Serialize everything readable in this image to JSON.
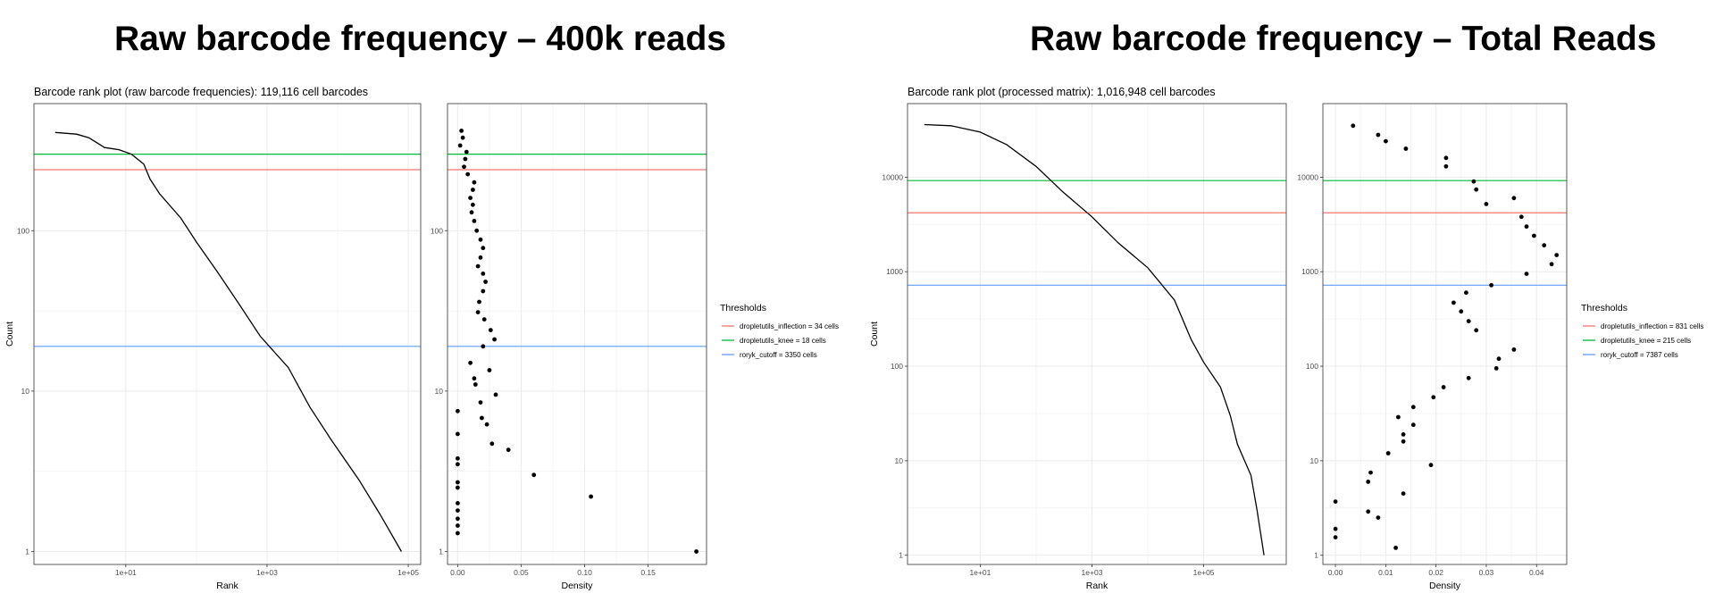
{
  "titles": {
    "left": "Raw barcode frequency – 400k reads",
    "right": "Raw barcode frequency – Total Reads"
  },
  "chart_data": [
    {
      "type": "line",
      "title": "Barcode rank plot (raw barcode frequencies): 119,116 cell barcodes",
      "xlabel": "Rank",
      "ylabel": "Count",
      "x_scale": "log10",
      "y_scale": "log10",
      "xlim": [
        0.5,
        150000
      ],
      "ylim": [
        0.83,
        620
      ],
      "x_ticks": [
        {
          "v": 10,
          "label": "1e+01"
        },
        {
          "v": 1000,
          "label": "1e+03"
        },
        {
          "v": 100000,
          "label": "1e+05"
        }
      ],
      "y_ticks": [
        {
          "v": 1,
          "label": "1"
        },
        {
          "v": 10,
          "label": "10"
        },
        {
          "v": 100,
          "label": "100"
        }
      ],
      "curve": [
        [
          1,
          410
        ],
        [
          2,
          400
        ],
        [
          3,
          380
        ],
        [
          5,
          330
        ],
        [
          8,
          320
        ],
        [
          12,
          300
        ],
        [
          18,
          260
        ],
        [
          22,
          210
        ],
        [
          30,
          170
        ],
        [
          60,
          120
        ],
        [
          100,
          85
        ],
        [
          200,
          55
        ],
        [
          400,
          35
        ],
        [
          800,
          22
        ],
        [
          2000,
          14
        ],
        [
          4000,
          8
        ],
        [
          8000,
          5
        ],
        [
          20000,
          2.8
        ],
        [
          40000,
          1.7
        ],
        [
          80000,
          1.0
        ]
      ],
      "thresholds": [
        {
          "name": "dropletutils_inflection = 34 cells",
          "value": 240,
          "color": "#F8766D"
        },
        {
          "name": "dropletutils_knee = 18 cells",
          "value": 300,
          "color": "#00BA38"
        },
        {
          "name": "roryk_cutoff = 3350 cells",
          "value": 19,
          "color": "#619CFF"
        }
      ]
    },
    {
      "type": "scatter",
      "xlabel": "Density",
      "ylabel": "",
      "x_scale": "linear",
      "y_scale": "log10",
      "xlim": [
        -0.008,
        0.196
      ],
      "ylim": [
        0.83,
        620
      ],
      "x_ticks": [
        {
          "v": 0,
          "label": "0.00"
        },
        {
          "v": 0.05,
          "label": "0.05"
        },
        {
          "v": 0.1,
          "label": "0.10"
        },
        {
          "v": 0.15,
          "label": "0.15"
        }
      ],
      "y_ticks": [
        {
          "v": 1,
          "label": "1"
        },
        {
          "v": 10,
          "label": "10"
        },
        {
          "v": 100,
          "label": "100"
        }
      ],
      "points": [
        [
          0.003,
          420
        ],
        [
          0.004,
          380
        ],
        [
          0.002,
          340
        ],
        [
          0.007,
          310
        ],
        [
          0.006,
          280
        ],
        [
          0.005,
          250
        ],
        [
          0.008,
          225
        ],
        [
          0.013,
          200
        ],
        [
          0.012,
          180
        ],
        [
          0.01,
          160
        ],
        [
          0.012,
          145
        ],
        [
          0.011,
          130
        ],
        [
          0.013,
          115
        ],
        [
          0.015,
          100
        ],
        [
          0.018,
          88
        ],
        [
          0.02,
          78
        ],
        [
          0.018,
          68
        ],
        [
          0.016,
          60
        ],
        [
          0.02,
          54
        ],
        [
          0.022,
          48
        ],
        [
          0.02,
          42
        ],
        [
          0.017,
          36
        ],
        [
          0.016,
          31
        ],
        [
          0.021,
          28
        ],
        [
          0.026,
          24
        ],
        [
          0.029,
          21
        ],
        [
          0.02,
          19
        ],
        [
          0.01,
          15
        ],
        [
          0.025,
          13.5
        ],
        [
          0.013,
          12
        ],
        [
          0.014,
          11
        ],
        [
          0.03,
          9.5
        ],
        [
          0.018,
          8.5
        ],
        [
          0.0,
          7.5
        ],
        [
          0.019,
          6.8
        ],
        [
          0.023,
          6.2
        ],
        [
          0.0,
          5.4
        ],
        [
          0.027,
          4.7
        ],
        [
          0.04,
          4.3
        ],
        [
          0.0,
          3.8
        ],
        [
          0.0,
          3.5
        ],
        [
          0.06,
          3.0
        ],
        [
          0.0,
          2.7
        ],
        [
          0.0,
          2.5
        ],
        [
          0.105,
          2.2
        ],
        [
          0.0,
          2.0
        ],
        [
          0.0,
          1.8
        ],
        [
          0.0,
          1.6
        ],
        [
          0.0,
          1.45
        ],
        [
          0.0,
          1.3
        ],
        [
          0.188,
          1.0
        ]
      ],
      "thresholds": [
        {
          "name": "dropletutils_inflection = 34 cells",
          "value": 240,
          "color": "#F8766D"
        },
        {
          "name": "dropletutils_knee = 18 cells",
          "value": 300,
          "color": "#00BA38"
        },
        {
          "name": "roryk_cutoff = 3350 cells",
          "value": 19,
          "color": "#619CFF"
        }
      ]
    },
    {
      "type": "line",
      "title": "Barcode rank plot (processed matrix): 1,016,948 cell barcodes",
      "xlabel": "Rank",
      "ylabel": "Count",
      "x_scale": "log10",
      "y_scale": "log10",
      "xlim": [
        0.5,
        3000000
      ],
      "ylim": [
        0.8,
        60000
      ],
      "x_ticks": [
        {
          "v": 10,
          "label": "1e+01"
        },
        {
          "v": 1000,
          "label": "1e+03"
        },
        {
          "v": 100000,
          "label": "1e+05"
        }
      ],
      "y_ticks": [
        {
          "v": 1,
          "label": "1"
        },
        {
          "v": 10,
          "label": "10"
        },
        {
          "v": 100,
          "label": "100"
        },
        {
          "v": 1000,
          "label": "1000"
        },
        {
          "v": 10000,
          "label": "10000"
        }
      ],
      "curve": [
        [
          1,
          36000
        ],
        [
          3,
          35000
        ],
        [
          10,
          30000
        ],
        [
          30,
          22000
        ],
        [
          100,
          13000
        ],
        [
          300,
          7000
        ],
        [
          1000,
          3800
        ],
        [
          3000,
          2000
        ],
        [
          10000,
          1100
        ],
        [
          30000,
          500
        ],
        [
          60000,
          190
        ],
        [
          100000,
          110
        ],
        [
          200000,
          60
        ],
        [
          300000,
          30
        ],
        [
          400000,
          15
        ],
        [
          700000,
          7
        ],
        [
          900000,
          3
        ],
        [
          1200000,
          1.0
        ]
      ],
      "thresholds": [
        {
          "name": "dropletutils_inflection = 831 cells",
          "value": 4200,
          "color": "#F8766D"
        },
        {
          "name": "dropletutils_knee = 215 cells",
          "value": 9200,
          "color": "#00BA38"
        },
        {
          "name": "roryk_cutoff = 7387 cells",
          "value": 720,
          "color": "#619CFF"
        }
      ]
    },
    {
      "type": "scatter",
      "xlabel": "Density",
      "ylabel": "",
      "x_scale": "linear",
      "y_scale": "log10",
      "xlim": [
        -0.0025,
        0.046
      ],
      "ylim": [
        0.8,
        60000
      ],
      "x_ticks": [
        {
          "v": 0,
          "label": "0.00"
        },
        {
          "v": 0.01,
          "label": "0.01"
        },
        {
          "v": 0.02,
          "label": "0.02"
        },
        {
          "v": 0.03,
          "label": "0.03"
        },
        {
          "v": 0.04,
          "label": "0.04"
        }
      ],
      "y_ticks": [
        {
          "v": 1,
          "label": "1"
        },
        {
          "v": 10,
          "label": "10"
        },
        {
          "v": 100,
          "label": "100"
        },
        {
          "v": 1000,
          "label": "1000"
        },
        {
          "v": 10000,
          "label": "10000"
        }
      ],
      "points": [
        [
          0.0035,
          35000
        ],
        [
          0.0085,
          28000
        ],
        [
          0.01,
          24000
        ],
        [
          0.014,
          20000
        ],
        [
          0.022,
          16000
        ],
        [
          0.022,
          13000
        ],
        [
          0.0275,
          9000
        ],
        [
          0.028,
          7400
        ],
        [
          0.03,
          5200
        ],
        [
          0.0355,
          6000
        ],
        [
          0.037,
          3800
        ],
        [
          0.038,
          3000
        ],
        [
          0.0395,
          2400
        ],
        [
          0.0415,
          1900
        ],
        [
          0.044,
          1500
        ],
        [
          0.043,
          1200
        ],
        [
          0.038,
          950
        ],
        [
          0.031,
          720
        ],
        [
          0.026,
          600
        ],
        [
          0.0235,
          470
        ],
        [
          0.025,
          380
        ],
        [
          0.0265,
          300
        ],
        [
          0.028,
          240
        ],
        [
          0.0355,
          150
        ],
        [
          0.0325,
          120
        ],
        [
          0.032,
          95
        ],
        [
          0.0265,
          75
        ],
        [
          0.0215,
          60
        ],
        [
          0.0195,
          47
        ],
        [
          0.0155,
          37
        ],
        [
          0.0125,
          29
        ],
        [
          0.0155,
          24
        ],
        [
          0.0135,
          19
        ],
        [
          0.0135,
          16
        ],
        [
          0.0105,
          12
        ],
        [
          0.019,
          9
        ],
        [
          0.007,
          7.5
        ],
        [
          0.0065,
          6
        ],
        [
          0.0135,
          4.5
        ],
        [
          0.0,
          3.7
        ],
        [
          0.0065,
          2.9
        ],
        [
          0.0085,
          2.5
        ],
        [
          0.0,
          1.9
        ],
        [
          0.0,
          1.55
        ],
        [
          0.012,
          1.2
        ]
      ],
      "thresholds": [
        {
          "name": "dropletutils_inflection = 831 cells",
          "value": 4200,
          "color": "#F8766D"
        },
        {
          "name": "dropletutils_knee = 215 cells",
          "value": 9200,
          "color": "#00BA38"
        },
        {
          "name": "roryk_cutoff = 7387 cells",
          "value": 720,
          "color": "#619CFF"
        }
      ]
    }
  ],
  "legends": [
    {
      "title": "Thresholds",
      "items": [
        {
          "label": "dropletutils_inflection = 34 cells",
          "color": "#F8766D"
        },
        {
          "label": "dropletutils_knee = 18 cells",
          "color": "#00BA38"
        },
        {
          "label": "roryk_cutoff = 3350 cells",
          "color": "#619CFF"
        }
      ]
    },
    {
      "title": "Thresholds",
      "items": [
        {
          "label": "dropletutils_inflection = 831 cells",
          "color": "#F8766D"
        },
        {
          "label": "dropletutils_knee = 215 cells",
          "color": "#00BA38"
        },
        {
          "label": "roryk_cutoff = 7387 cells",
          "color": "#619CFF"
        }
      ]
    }
  ]
}
